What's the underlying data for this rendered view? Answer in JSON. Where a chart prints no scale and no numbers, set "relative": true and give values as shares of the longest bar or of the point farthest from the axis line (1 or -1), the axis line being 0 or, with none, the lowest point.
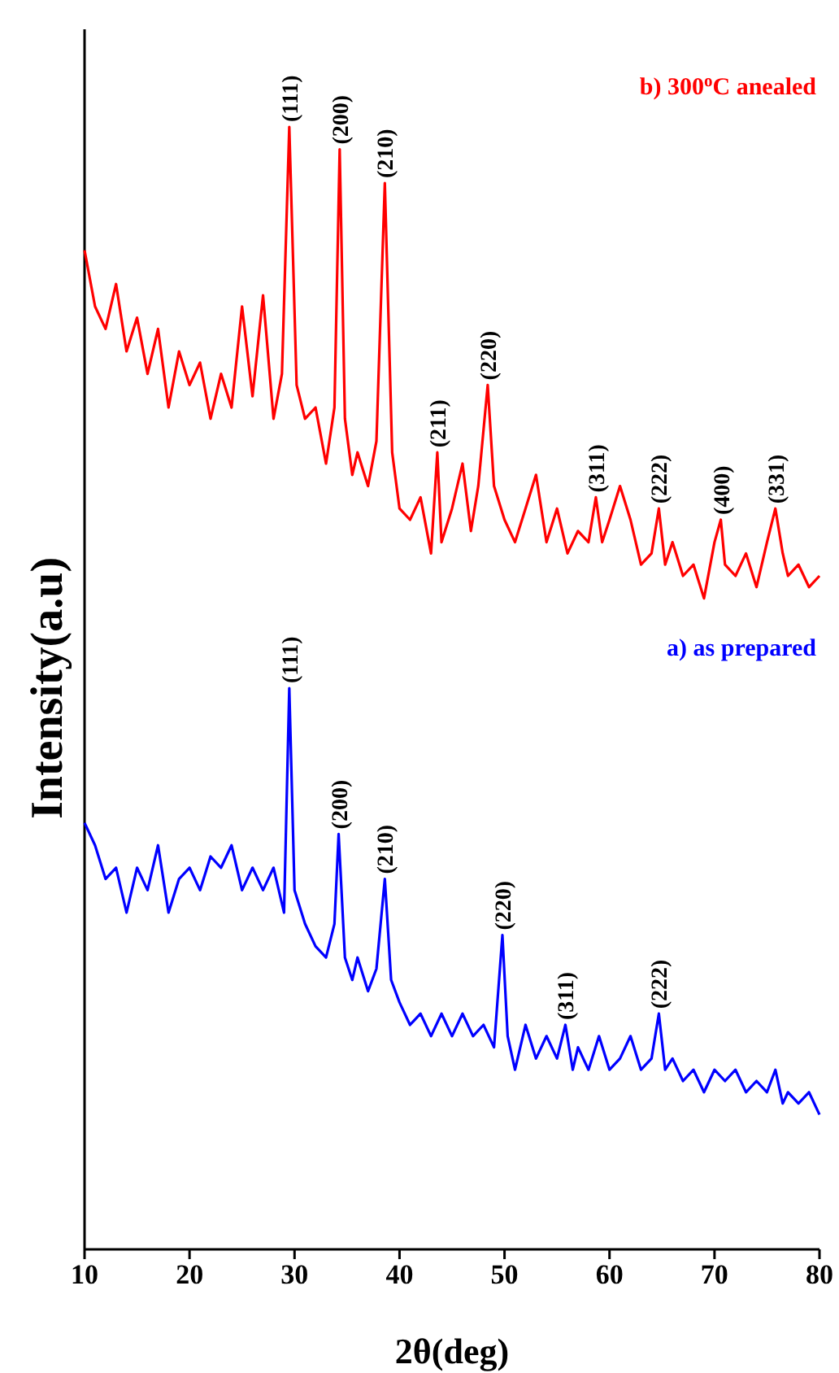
{
  "chart_data": {
    "type": "line",
    "relative": true,
    "xlabel": "2θ(deg)",
    "ylabel": "Intensity(a.u)",
    "xlim": [
      10,
      80
    ],
    "xticks": [
      10,
      20,
      30,
      40,
      50,
      60,
      70,
      80
    ],
    "grid": false,
    "marker": "none",
    "line_style": "solid",
    "series": [
      {
        "name": "b) 300$^{o}$C anealed",
        "color": "#ff0000",
        "x": [
          10,
          11,
          12,
          13,
          14,
          15,
          16,
          17,
          18,
          19,
          20,
          21,
          22,
          23,
          24,
          25,
          26,
          27,
          28,
          28.8,
          29.5,
          30.2,
          31,
          32,
          33,
          33.8,
          34.3,
          34.8,
          35.5,
          36,
          37,
          37.8,
          38.6,
          39.3,
          40,
          41,
          42,
          43,
          43.6,
          44,
          45,
          46,
          46.8,
          47.5,
          48.4,
          49,
          50,
          51,
          52,
          53,
          54,
          55,
          56,
          57,
          58,
          58.7,
          59.3,
          60,
          61,
          62,
          63,
          64,
          64.7,
          65.3,
          66,
          67,
          68,
          69,
          70,
          70.6,
          71,
          72,
          73,
          74,
          75,
          75.8,
          76.5,
          77,
          78,
          79,
          80
        ],
        "values": [
          0.89,
          0.84,
          0.82,
          0.86,
          0.8,
          0.83,
          0.78,
          0.82,
          0.75,
          0.8,
          0.77,
          0.79,
          0.74,
          0.78,
          0.75,
          0.84,
          0.76,
          0.85,
          0.74,
          0.78,
          1,
          0.77,
          0.74,
          0.75,
          0.7,
          0.75,
          0.98,
          0.74,
          0.69,
          0.71,
          0.68,
          0.72,
          0.95,
          0.71,
          0.66,
          0.65,
          0.67,
          0.62,
          0.71,
          0.63,
          0.66,
          0.7,
          0.64,
          0.68,
          0.77,
          0.68,
          0.65,
          0.63,
          0.66,
          0.69,
          0.63,
          0.66,
          0.62,
          0.64,
          0.63,
          0.67,
          0.63,
          0.65,
          0.68,
          0.65,
          0.61,
          0.62,
          0.66,
          0.61,
          0.63,
          0.6,
          0.61,
          0.58,
          0.63,
          0.65,
          0.61,
          0.6,
          0.62,
          0.59,
          0.63,
          0.66,
          0.62,
          0.6,
          0.61,
          0.59,
          0.6
        ]
      },
      {
        "name": "a) as prepared",
        "color": "#0000ff",
        "x": [
          10,
          11,
          12,
          13,
          14,
          15,
          16,
          17,
          18,
          19,
          20,
          21,
          22,
          23,
          24,
          25,
          26,
          27,
          28,
          29,
          29.5,
          30,
          31,
          32,
          33,
          33.8,
          34.2,
          34.8,
          35.5,
          36,
          37,
          37.8,
          38.6,
          39.2,
          40,
          41,
          42,
          43,
          44,
          45,
          46,
          47,
          48,
          49,
          49.8,
          50.3,
          51,
          52,
          53,
          54,
          55,
          55.8,
          56.5,
          57,
          58,
          59,
          60,
          61,
          62,
          63,
          64,
          64.7,
          65.3,
          66,
          67,
          68,
          69,
          70,
          71,
          72,
          73,
          74,
          75,
          75.8,
          76.5,
          77,
          78,
          79,
          80
        ],
        "values": [
          0.38,
          0.36,
          0.33,
          0.34,
          0.3,
          0.34,
          0.32,
          0.36,
          0.3,
          0.33,
          0.34,
          0.32,
          0.35,
          0.34,
          0.36,
          0.32,
          0.34,
          0.32,
          0.34,
          0.3,
          0.5,
          0.32,
          0.29,
          0.27,
          0.26,
          0.29,
          0.37,
          0.26,
          0.24,
          0.26,
          0.23,
          0.25,
          0.33,
          0.24,
          0.22,
          0.2,
          0.21,
          0.19,
          0.21,
          0.19,
          0.21,
          0.19,
          0.2,
          0.18,
          0.28,
          0.19,
          0.16,
          0.2,
          0.17,
          0.19,
          0.17,
          0.2,
          0.16,
          0.18,
          0.16,
          0.19,
          0.16,
          0.17,
          0.19,
          0.16,
          0.17,
          0.21,
          0.16,
          0.17,
          0.15,
          0.16,
          0.14,
          0.16,
          0.15,
          0.16,
          0.14,
          0.15,
          0.14,
          0.16,
          0.13,
          0.14,
          0.13,
          0.14,
          0.12
        ]
      }
    ],
    "annotations": [
      {
        "text": "(111)",
        "x": 29.5,
        "y": 1
      },
      {
        "text": "(200)",
        "x": 34.3,
        "y": 0.98
      },
      {
        "text": "(210)",
        "x": 38.6,
        "y": 0.95
      },
      {
        "text": "(211)",
        "x": 43.6,
        "y": 0.71
      },
      {
        "text": "(220)",
        "x": 48.4,
        "y": 0.77
      },
      {
        "text": "(311)",
        "x": 58.7,
        "y": 0.67
      },
      {
        "text": "(222)",
        "x": 64.7,
        "y": 0.66
      },
      {
        "text": "(400)",
        "x": 70.6,
        "y": 0.65
      },
      {
        "text": "(331)",
        "x": 75.8,
        "y": 0.66
      },
      {
        "text": "(111)",
        "x": 29.5,
        "y": 0.5
      },
      {
        "text": "(200)",
        "x": 34.2,
        "y": 0.37
      },
      {
        "text": "(210)",
        "x": 38.6,
        "y": 0.33
      },
      {
        "text": "(220)",
        "x": 49.8,
        "y": 0.28
      },
      {
        "text": "(311)",
        "x": 55.8,
        "y": 0.2
      },
      {
        "text": "(222)",
        "x": 64.7,
        "y": 0.21
      }
    ]
  }
}
